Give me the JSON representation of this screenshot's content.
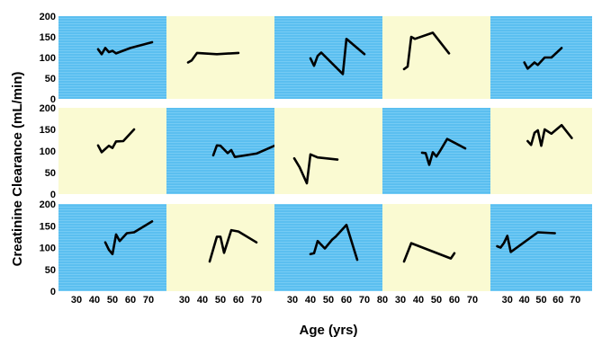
{
  "chart_data": {
    "type": "line",
    "xlabel": "Age (yrs)",
    "ylabel": "Creatinine Clearance (mL/min)",
    "ylim": [
      0,
      200
    ],
    "yticks": [
      "0",
      "50",
      "100",
      "150",
      "200"
    ],
    "xlim": [
      20,
      80
    ],
    "xticks": [
      30,
      40,
      50,
      60,
      70,
      80
    ],
    "xtick_labels": [
      "30",
      "40",
      "50",
      "60",
      "70",
      "80"
    ],
    "last_xtick_label": "80",
    "grid": false,
    "colors": {
      "blue": "#5bbff0",
      "cream": "#fafad2",
      "line": "#000000"
    },
    "panels": [
      {
        "bg": "blue",
        "x": [
          42,
          44,
          46,
          48,
          50,
          52,
          60,
          72
        ],
        "y": [
          120,
          108,
          123,
          113,
          116,
          110,
          123,
          137
        ]
      },
      {
        "bg": "cream",
        "x": [
          32,
          34,
          37,
          48,
          60
        ],
        "y": [
          88,
          93,
          111,
          108,
          111
        ]
      },
      {
        "bg": "blue",
        "x": [
          40,
          42,
          44,
          46,
          58,
          60,
          70
        ],
        "y": [
          98,
          80,
          104,
          112,
          60,
          145,
          108
        ]
      },
      {
        "bg": "cream",
        "x": [
          32,
          34,
          36,
          38,
          48,
          57
        ],
        "y": [
          72,
          78,
          150,
          145,
          160,
          110
        ]
      },
      {
        "bg": "blue",
        "x": [
          40,
          42,
          46,
          48,
          52,
          56,
          62
        ],
        "y": [
          88,
          73,
          88,
          82,
          100,
          100,
          123
        ]
      },
      {
        "bg": "cream",
        "x": [
          42,
          44,
          48,
          50,
          52,
          56,
          62
        ],
        "y": [
          113,
          97,
          112,
          107,
          122,
          123,
          150
        ]
      },
      {
        "bg": "blue",
        "x": [
          46,
          48,
          50,
          54,
          56,
          58,
          70,
          80
        ],
        "y": [
          90,
          113,
          112,
          95,
          102,
          86,
          94,
          112
        ]
      },
      {
        "bg": "cream",
        "x": [
          31,
          34,
          38,
          40,
          44,
          55
        ],
        "y": [
          83,
          62,
          25,
          92,
          85,
          80
        ]
      },
      {
        "bg": "blue",
        "x": [
          42,
          44,
          46,
          48,
          50,
          52,
          56,
          66
        ],
        "y": [
          96,
          95,
          68,
          97,
          87,
          100,
          128,
          106
        ]
      },
      {
        "bg": "cream",
        "x": [
          42,
          44,
          46,
          48,
          50,
          52,
          56,
          62,
          68
        ],
        "y": [
          123,
          114,
          142,
          148,
          112,
          150,
          140,
          160,
          130
        ]
      },
      {
        "bg": "blue",
        "x": [
          46,
          48,
          50,
          52,
          54,
          58,
          62,
          72
        ],
        "y": [
          112,
          95,
          85,
          130,
          115,
          133,
          135,
          160
        ]
      },
      {
        "bg": "cream",
        "x": [
          44,
          48,
          50,
          52,
          56,
          60,
          70
        ],
        "y": [
          68,
          125,
          125,
          88,
          140,
          137,
          112
        ]
      },
      {
        "bg": "blue",
        "x": [
          40,
          42,
          44,
          48,
          52,
          54,
          60,
          66
        ],
        "y": [
          85,
          87,
          115,
          98,
          118,
          125,
          152,
          72
        ]
      },
      {
        "bg": "cream",
        "x": [
          32,
          36,
          58,
          60
        ],
        "y": [
          68,
          110,
          75,
          87
        ]
      },
      {
        "bg": "blue",
        "x": [
          24,
          26,
          28,
          30,
          32,
          48,
          58
        ],
        "y": [
          103,
          100,
          111,
          127,
          90,
          135,
          133
        ]
      }
    ]
  }
}
